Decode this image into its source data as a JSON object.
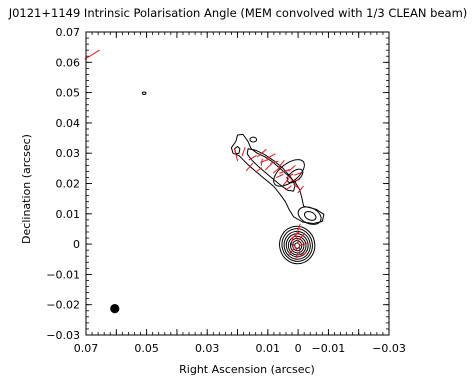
{
  "chart_data": {
    "type": "contour",
    "title": "J0121+1149 Intrinsic Polarisation Angle (MEM convolved with 1/3 CLEAN beam)",
    "xlabel": "Right Ascension (arcsec)",
    "ylabel": "Declination (arcsec)",
    "xlim": [
      0.07,
      -0.03
    ],
    "ylim": [
      -0.03,
      0.07
    ],
    "x_ticks": [
      0.07,
      0.05,
      0.03,
      0.01,
      0,
      -0.01,
      -0.03
    ],
    "x_tick_labels": [
      "0.07",
      "0.05",
      "0.03",
      "0.01",
      "0",
      "−0.01",
      "−0.03"
    ],
    "y_ticks": [
      0.07,
      0.06,
      0.05,
      0.04,
      0.03,
      0.02,
      0.01,
      0,
      -0.01,
      -0.02,
      -0.03
    ],
    "y_tick_labels": [
      "0.07",
      "0.06",
      "0.05",
      "0.04",
      "0.03",
      "0.02",
      "0.01",
      "0",
      "−0.01",
      "−0.02",
      "−0.03"
    ],
    "contour_color": "#000000",
    "vector_color": "#e8141e",
    "beam": {
      "x": 0.0605,
      "y": -0.0213,
      "diameter": 0.0027,
      "color": "#000000"
    },
    "contours": [
      {
        "cx": 0.0003,
        "cy": -0.0003,
        "rx": 0.0058,
        "ry": 0.0062,
        "angle": -12
      },
      {
        "cx": 0.0003,
        "cy": -0.0003,
        "rx": 0.005,
        "ry": 0.0054,
        "angle": -12
      },
      {
        "cx": 0.0003,
        "cy": -0.0004,
        "rx": 0.0043,
        "ry": 0.0046,
        "angle": -12
      },
      {
        "cx": 0.0003,
        "cy": -0.0004,
        "rx": 0.0036,
        "ry": 0.0038,
        "angle": -12
      },
      {
        "cx": 0.0003,
        "cy": -0.0005,
        "rx": 0.0029,
        "ry": 0.0031,
        "angle": -12
      },
      {
        "cx": 0.0003,
        "cy": -0.0005,
        "rx": 0.0022,
        "ry": 0.0024,
        "angle": -12
      },
      {
        "cx": 0.0003,
        "cy": -0.0005,
        "rx": 0.0015,
        "ry": 0.0017,
        "angle": -12
      },
      {
        "cx": 0.0003,
        "cy": -0.0005,
        "rx": 0.0008,
        "ry": 0.0009,
        "angle": -12
      },
      {
        "cx": -0.0038,
        "cy": 0.0094,
        "rx": 0.004,
        "ry": 0.0026,
        "angle": 25
      },
      {
        "cx": -0.004,
        "cy": 0.0093,
        "rx": 0.002,
        "ry": 0.0013,
        "angle": 25
      },
      {
        "cx": 0.003,
        "cy": 0.0235,
        "rx": 0.006,
        "ry": 0.003,
        "angle": -38
      },
      {
        "cx": 0.001,
        "cy": 0.0225,
        "rx": 0.003,
        "ry": 0.0016,
        "angle": -38
      },
      {
        "cx": 0.0148,
        "cy": 0.0345,
        "rx": 0.0011,
        "ry": 0.0008,
        "angle": 0
      },
      {
        "cx": 0.0508,
        "cy": 0.0498,
        "rx": 0.0006,
        "ry": 0.0004,
        "angle": 0
      }
    ],
    "contour_paths": [
      [
        [
          0.0205,
          0.034
        ],
        [
          0.02,
          0.036
        ],
        [
          0.0182,
          0.0362
        ],
        [
          0.0165,
          0.0338
        ],
        [
          0.0155,
          0.0315
        ],
        [
          0.0135,
          0.03
        ],
        [
          0.011,
          0.0288
        ],
        [
          0.0085,
          0.0272
        ],
        [
          0.006,
          0.025
        ],
        [
          0.0032,
          0.0225
        ],
        [
          0.001,
          0.0205
        ],
        [
          -0.0005,
          0.018
        ],
        [
          -0.0012,
          0.0155
        ],
        [
          -0.0018,
          0.0125
        ],
        [
          -0.006,
          0.0115
        ],
        [
          -0.0085,
          0.0098
        ],
        [
          -0.008,
          0.0075
        ],
        [
          -0.005,
          0.0068
        ],
        [
          -0.0015,
          0.0073
        ],
        [
          0.0015,
          0.009
        ],
        [
          0.003,
          0.0115
        ],
        [
          0.0042,
          0.014
        ],
        [
          0.006,
          0.0165
        ],
        [
          0.008,
          0.019
        ],
        [
          0.011,
          0.0215
        ],
        [
          0.014,
          0.024
        ],
        [
          0.0165,
          0.0262
        ],
        [
          0.0185,
          0.0282
        ],
        [
          0.0195,
          0.0292
        ],
        [
          0.0215,
          0.03
        ],
        [
          0.022,
          0.0318
        ],
        [
          0.0205,
          0.034
        ]
      ],
      [
        [
          0.0165,
          0.0315
        ],
        [
          0.014,
          0.031
        ],
        [
          0.011,
          0.0295
        ],
        [
          0.008,
          0.0275
        ],
        [
          0.005,
          0.025
        ],
        [
          0.0025,
          0.0222
        ],
        [
          0.001,
          0.0195
        ],
        [
          0.0015,
          0.0175
        ],
        [
          0.0035,
          0.0178
        ],
        [
          0.0062,
          0.0198
        ],
        [
          0.0095,
          0.0225
        ],
        [
          0.013,
          0.0255
        ],
        [
          0.0155,
          0.028
        ],
        [
          0.0168,
          0.0298
        ],
        [
          0.0165,
          0.0315
        ]
      ],
      [
        [
          0.021,
          0.0315
        ],
        [
          0.0205,
          0.0298
        ],
        [
          0.0195,
          0.03
        ],
        [
          0.0192,
          0.0315
        ],
        [
          0.02,
          0.0322
        ],
        [
          0.021,
          0.0315
        ]
      ]
    ],
    "vectors": [
      {
        "x": 0.068,
        "y": 0.0625,
        "angle": 148,
        "length": 0.0058
      },
      {
        "x": 0.0205,
        "y": 0.0295,
        "angle": 75,
        "length": 0.0042
      },
      {
        "x": 0.018,
        "y": 0.0305,
        "angle": 110,
        "length": 0.0032
      },
      {
        "x": 0.016,
        "y": 0.0255,
        "angle": 130,
        "length": 0.0035
      },
      {
        "x": 0.015,
        "y": 0.0285,
        "angle": 150,
        "length": 0.003
      },
      {
        "x": 0.012,
        "y": 0.03,
        "angle": 140,
        "length": 0.004
      },
      {
        "x": 0.011,
        "y": 0.0275,
        "angle": 160,
        "length": 0.0032
      },
      {
        "x": 0.0098,
        "y": 0.0255,
        "angle": 135,
        "length": 0.003
      },
      {
        "x": 0.009,
        "y": 0.029,
        "angle": 150,
        "length": 0.0034
      },
      {
        "x": 0.0078,
        "y": 0.027,
        "angle": 165,
        "length": 0.0028
      },
      {
        "x": 0.007,
        "y": 0.0245,
        "angle": 140,
        "length": 0.0032
      },
      {
        "x": 0.006,
        "y": 0.0225,
        "angle": 155,
        "length": 0.0026
      },
      {
        "x": 0.0055,
        "y": 0.0265,
        "angle": 130,
        "length": 0.003
      },
      {
        "x": 0.0045,
        "y": 0.024,
        "angle": 160,
        "length": 0.0036
      },
      {
        "x": 0.004,
        "y": 0.0205,
        "angle": 130,
        "length": 0.003
      },
      {
        "x": 0.0032,
        "y": 0.0185,
        "angle": 145,
        "length": 0.0024
      },
      {
        "x": 0.0028,
        "y": 0.0225,
        "angle": 150,
        "length": 0.0028
      },
      {
        "x": 0.002,
        "y": 0.025,
        "angle": 140,
        "length": 0.003
      },
      {
        "x": 0.001,
        "y": 0.021,
        "angle": 170,
        "length": 0.0032
      },
      {
        "x": 0.0005,
        "y": 0.019,
        "angle": 40,
        "length": 0.0026
      },
      {
        "x": 0.0,
        "y": 0.0232,
        "angle": 160,
        "length": 0.0026
      },
      {
        "x": -0.0008,
        "y": 0.018,
        "angle": 130,
        "length": 0.003
      },
      {
        "x": 0.012,
        "y": 0.027,
        "angle": 100,
        "length": 0.0024
      },
      {
        "x": 0.013,
        "y": 0.0245,
        "angle": 145,
        "length": 0.0026
      },
      {
        "x": -0.0001,
        "y": 0.005,
        "angle": 110,
        "length": 0.0036
      },
      {
        "x": 0.0008,
        "y": 0.003,
        "angle": 140,
        "length": 0.0032
      },
      {
        "x": 0.002,
        "y": 0.001,
        "angle": 100,
        "length": 0.003
      },
      {
        "x": 0.0003,
        "y": 0.0015,
        "angle": 70,
        "length": 0.0032
      },
      {
        "x": -0.0012,
        "y": 0.0025,
        "angle": 130,
        "length": 0.003
      },
      {
        "x": -0.002,
        "y": 0.0,
        "angle": 160,
        "length": 0.003
      },
      {
        "x": 0.001,
        "y": -0.001,
        "angle": 60,
        "length": 0.003
      },
      {
        "x": -0.0005,
        "y": -0.0018,
        "angle": 90,
        "length": 0.0034
      },
      {
        "x": 0.0022,
        "y": -0.0025,
        "angle": 130,
        "length": 0.0028
      },
      {
        "x": -0.0015,
        "y": -0.0035,
        "angle": 150,
        "length": 0.0028
      },
      {
        "x": 0.0005,
        "y": -0.004,
        "angle": 110,
        "length": 0.0026
      }
    ]
  }
}
